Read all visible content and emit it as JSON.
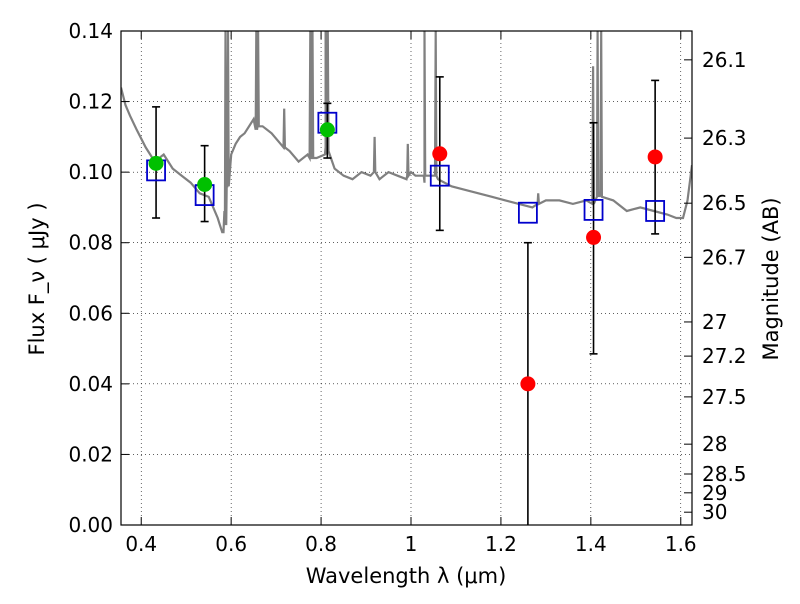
{
  "chart_data": {
    "type": "scatter",
    "title": "",
    "xlabel": "Wavelength  λ (μm)",
    "ylabel": "Flux  F_ν  ( μJy )",
    "ylabel_right": "Magnitude (AB)",
    "xlim": [
      0.355,
      1.625
    ],
    "ylim": [
      0.0,
      0.14
    ],
    "grid": true,
    "x_ticks": [
      0.4,
      0.6,
      0.8,
      1.0,
      1.2,
      1.4,
      1.6
    ],
    "x_tick_labels": [
      "0.4",
      "0.6",
      "0.8",
      "1",
      "1.2",
      "1.4",
      "1.6"
    ],
    "y_ticks": [
      0.0,
      0.02,
      0.04,
      0.06,
      0.08,
      0.1,
      0.12,
      0.14
    ],
    "y_tick_labels": [
      "0.00",
      "0.02",
      "0.04",
      "0.06",
      "0.08",
      "0.10",
      "0.12",
      "0.14"
    ],
    "right_ticks": [
      "26.1",
      "26.3",
      "26.5",
      "26.7",
      "27",
      "27.2",
      "27.5",
      "28",
      "28.5",
      "29",
      "30"
    ],
    "colors": {
      "detection": "#00c000",
      "measured": "#ff0000",
      "model": "#0000cc",
      "sed": "#808080",
      "errorbar": "#000000"
    },
    "series": [
      {
        "kind": "detection",
        "x": [
          0.433,
          0.541,
          0.814
        ],
        "y": [
          0.1025,
          0.0965,
          0.112
        ],
        "err": [
          [
            0.087,
            0.1185
          ],
          [
            0.086,
            0.1075
          ],
          [
            0.104,
            0.1195
          ]
        ]
      },
      {
        "kind": "measured",
        "x": [
          1.064,
          1.26,
          1.406,
          1.543
        ],
        "y": [
          0.1052,
          0.04,
          0.0815,
          0.1043
        ],
        "err": [
          [
            0.0835,
            0.127
          ],
          [
            0.0,
            0.08
          ],
          [
            0.0485,
            0.114
          ],
          [
            0.0825,
            0.126
          ]
        ]
      },
      {
        "kind": "model",
        "x": [
          0.433,
          0.541,
          0.814,
          1.064,
          1.26,
          1.406,
          1.543
        ],
        "y": [
          0.1005,
          0.0935,
          0.114,
          0.099,
          0.0885,
          0.0893,
          0.089
        ]
      },
      {
        "kind": "sed",
        "x": [
          0.355,
          0.365,
          0.375,
          0.39,
          0.41,
          0.43,
          0.45,
          0.47,
          0.49,
          0.51,
          0.53,
          0.55,
          0.57,
          0.575,
          0.58,
          0.583,
          0.585,
          0.59,
          0.6,
          0.61,
          0.62,
          0.63,
          0.65,
          0.66,
          0.67,
          0.69,
          0.71,
          0.73,
          0.75,
          0.77,
          0.79,
          0.81,
          0.83,
          0.85,
          0.87,
          0.89,
          0.91,
          0.93,
          0.95,
          0.97,
          0.99,
          1.0,
          1.01,
          1.03,
          1.06,
          1.09,
          1.12,
          1.15,
          1.18,
          1.21,
          1.24,
          1.27,
          1.3,
          1.33,
          1.36,
          1.39,
          1.42,
          1.45,
          1.48,
          1.51,
          1.54,
          1.57,
          1.59,
          1.605,
          1.615,
          1.625
        ],
        "y": [
          0.124,
          0.119,
          0.116,
          0.112,
          0.107,
          0.103,
          0.105,
          0.101,
          0.099,
          0.097,
          0.094,
          0.093,
          0.087,
          0.085,
          0.083,
          0.083,
          0.089,
          0.096,
          0.105,
          0.108,
          0.11,
          0.111,
          0.115,
          0.118,
          0.113,
          0.111,
          0.108,
          0.106,
          0.103,
          0.105,
          0.104,
          0.107,
          0.101,
          0.099,
          0.098,
          0.1,
          0.099,
          0.098,
          0.1,
          0.099,
          0.098,
          0.1,
          0.099,
          0.097,
          0.098,
          0.096,
          0.095,
          0.094,
          0.093,
          0.092,
          0.091,
          0.09,
          0.092,
          0.092,
          0.091,
          0.092,
          0.094,
          0.092,
          0.089,
          0.09,
          0.089,
          0.088,
          0.087,
          0.087,
          0.092,
          0.102
        ]
      }
    ],
    "emission_lines": [
      {
        "x": 0.5875,
        "top": 0.14,
        "base": 0.085
      },
      {
        "x": 0.593,
        "top": 0.14,
        "base": 0.096
      },
      {
        "x": 0.656,
        "top": 0.14,
        "base": 0.112
      },
      {
        "x": 0.66,
        "top": 0.14,
        "base": 0.113
      },
      {
        "x": 0.718,
        "top": 0.118,
        "base": 0.107
      },
      {
        "x": 0.776,
        "top": 0.14,
        "base": 0.104
      },
      {
        "x": 0.781,
        "top": 0.14,
        "base": 0.104
      },
      {
        "x": 0.81,
        "top": 0.14,
        "base": 0.105
      },
      {
        "x": 0.815,
        "top": 0.14,
        "base": 0.106
      },
      {
        "x": 0.919,
        "top": 0.11,
        "base": 0.1
      },
      {
        "x": 0.993,
        "top": 0.108,
        "base": 0.099
      },
      {
        "x": 1.03,
        "top": 0.14,
        "base": 0.099
      },
      {
        "x": 1.055,
        "top": 0.14,
        "base": 0.099
      },
      {
        "x": 1.283,
        "top": 0.094,
        "base": 0.091
      },
      {
        "x": 1.405,
        "top": 0.13,
        "base": 0.091
      },
      {
        "x": 1.415,
        "top": 0.14,
        "base": 0.093
      },
      {
        "x": 1.423,
        "top": 0.14,
        "base": 0.093
      }
    ]
  }
}
